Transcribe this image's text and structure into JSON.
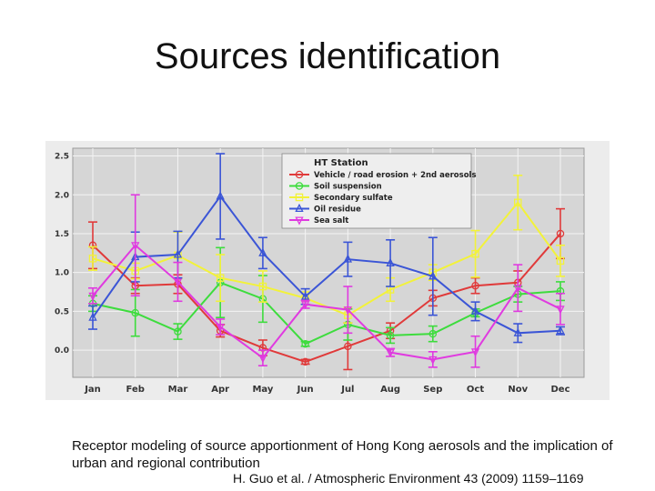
{
  "slide": {
    "title": "Sources identification",
    "caption": "Receptor modeling of source apportionment of Hong Kong aerosols and the implication of urban and regional contribution",
    "citation": "H. Guo et al. / Atmospheric Environment 43 (2009) 1159–1169"
  },
  "chart_data": {
    "type": "line",
    "title": "HT Station",
    "xlabel": "",
    "ylabel": "",
    "categories": [
      "Jan",
      "Feb",
      "Mar",
      "Apr",
      "May",
      "Jun",
      "Jul",
      "Aug",
      "Sep",
      "Oct",
      "Nov",
      "Dec"
    ],
    "ylim": [
      -0.35,
      2.6
    ],
    "yticks": [
      "2.5",
      "2.0",
      "1.5",
      "1.0",
      "0.5",
      "0.0"
    ],
    "ytick_values": [
      2.5,
      2.0,
      1.5,
      1.0,
      0.5,
      0.0
    ],
    "grid": true,
    "legend_position": "top-right",
    "series": [
      {
        "name": "Vehicle / road erosion + 2nd aerosols",
        "color": "#e03a3a",
        "marker": "circle",
        "values": [
          1.35,
          0.83,
          0.85,
          0.25,
          0.03,
          -0.15,
          0.05,
          0.25,
          0.67,
          0.83,
          0.87,
          1.5
        ],
        "errors": [
          0.3,
          0.1,
          0.12,
          0.08,
          0.1,
          0.03,
          0.3,
          0.1,
          0.1,
          0.1,
          0.15,
          0.32
        ]
      },
      {
        "name": "Soil suspension",
        "color": "#3ddc3d",
        "marker": "circle",
        "values": [
          0.6,
          0.48,
          0.24,
          0.87,
          0.66,
          0.08,
          0.33,
          0.19,
          0.21,
          0.48,
          0.72,
          0.76
        ],
        "errors": [
          0.1,
          0.3,
          0.1,
          0.45,
          0.3,
          0.03,
          0.2,
          0.1,
          0.1,
          0.05,
          0.1,
          0.12
        ]
      },
      {
        "name": "Secondary sulfate",
        "color": "#f2f23a",
        "marker": "square",
        "values": [
          1.18,
          1.02,
          1.22,
          0.93,
          0.82,
          0.67,
          0.45,
          0.78,
          1.0,
          1.24,
          1.9,
          1.15
        ],
        "errors": [
          0.15,
          0.1,
          0.3,
          0.3,
          0.2,
          0.08,
          0.1,
          0.15,
          0.1,
          0.3,
          0.35,
          0.2
        ]
      },
      {
        "name": "Oil residue",
        "color": "#3b55d6",
        "marker": "triangle-up",
        "values": [
          0.42,
          1.2,
          1.23,
          1.98,
          1.25,
          0.69,
          1.17,
          1.12,
          0.95,
          0.5,
          0.22,
          0.25
        ],
        "errors": [
          0.15,
          0.32,
          0.3,
          0.55,
          0.2,
          0.1,
          0.22,
          0.3,
          0.5,
          0.12,
          0.12,
          0.05
        ]
      },
      {
        "name": "Sea salt",
        "color": "#e03ae0",
        "marker": "triangle-down",
        "values": [
          0.7,
          1.35,
          0.88,
          0.3,
          -0.1,
          0.59,
          0.52,
          -0.03,
          -0.12,
          -0.02,
          0.8,
          0.53
        ],
        "errors": [
          0.1,
          0.65,
          0.25,
          0.1,
          0.1,
          0.05,
          0.3,
          0.05,
          0.1,
          0.2,
          0.3,
          0.2
        ]
      }
    ]
  }
}
